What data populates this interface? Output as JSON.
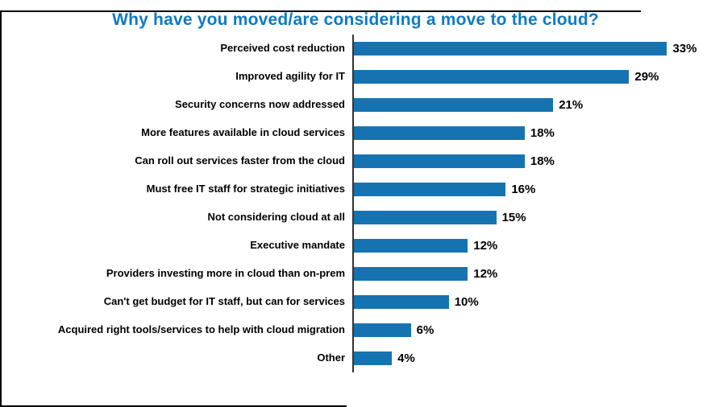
{
  "chart_data": {
    "type": "bar",
    "orientation": "horizontal",
    "title": "Why have you moved/are considering a move to the cloud?",
    "categories": [
      "Perceived cost reduction",
      "Improved agility for IT",
      "Security concerns now addressed",
      "More features available in cloud services",
      "Can roll out services faster from the cloud",
      "Must free IT staff for strategic initiatives",
      "Not considering cloud at all",
      "Executive mandate",
      "Providers investing more in cloud than on-prem",
      "Can't get budget for IT staff, but can for services",
      "Acquired right tools/services to help with cloud migration",
      "Other"
    ],
    "values": [
      33,
      29,
      21,
      18,
      18,
      16,
      15,
      12,
      12,
      10,
      6,
      4
    ],
    "value_labels": [
      "33%",
      "29%",
      "21%",
      "18%",
      "18%",
      "16%",
      "15%",
      "12%",
      "12%",
      "10%",
      "6%",
      "4%"
    ],
    "xlabel": "",
    "ylabel": "",
    "xlim": [
      0,
      35
    ],
    "grid": false,
    "legend": "none",
    "bar_color": "#1673B1",
    "title_color": "#0E7AC4",
    "axis_color": "#333333"
  }
}
